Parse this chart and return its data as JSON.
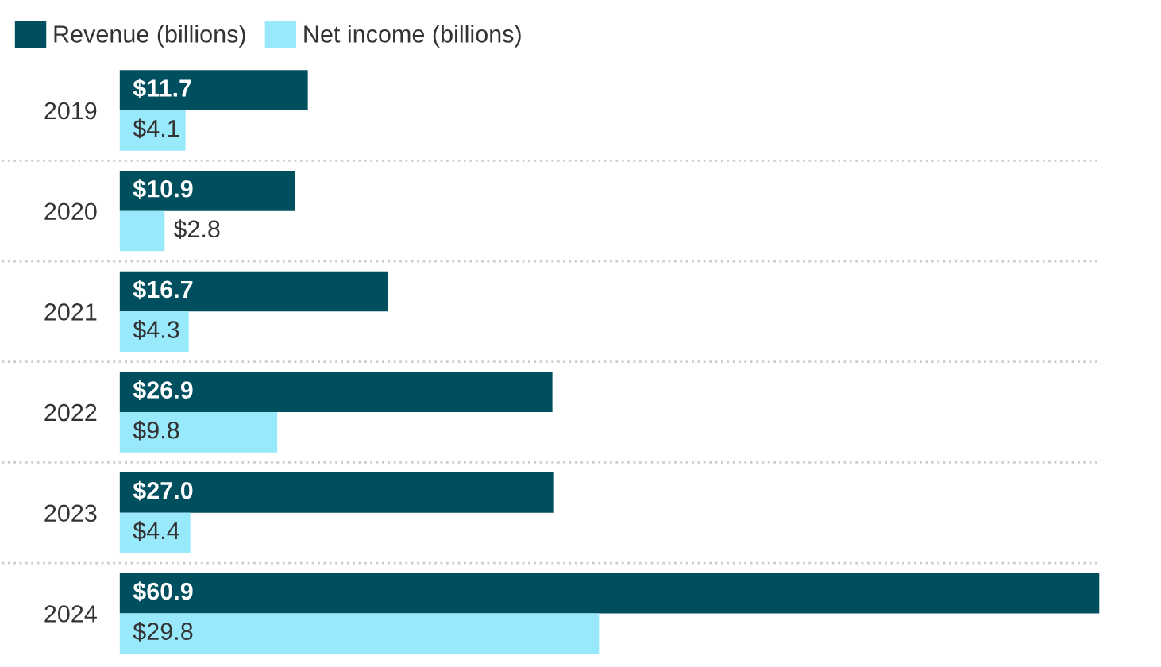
{
  "chart_data": {
    "type": "bar",
    "orientation": "horizontal",
    "categories": [
      "2019",
      "2020",
      "2021",
      "2022",
      "2023",
      "2024"
    ],
    "series": [
      {
        "name": "Revenue (billions)",
        "color": "#004f5f",
        "values": [
          11.7,
          10.9,
          16.7,
          26.9,
          27.0,
          60.9
        ],
        "value_labels": [
          "$11.7",
          "$10.9",
          "$16.7",
          "$26.9",
          "$27.0",
          "$60.9"
        ]
      },
      {
        "name": "Net income (billions)",
        "color": "#99e9fd",
        "values": [
          4.1,
          2.8,
          4.3,
          9.8,
          4.4,
          29.8
        ],
        "value_labels": [
          "$4.1",
          "$2.8",
          "$4.3",
          "$9.8",
          "$4.4",
          "$29.8"
        ]
      }
    ],
    "legend": "top left",
    "grid": "y",
    "tick_labels": "y"
  }
}
